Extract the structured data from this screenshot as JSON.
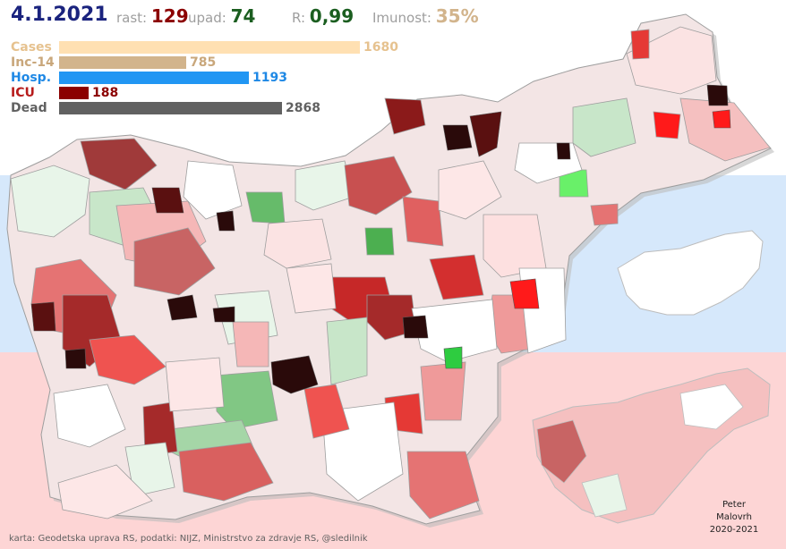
{
  "header": {
    "date": "4.1.2021",
    "rast_label": "rast:",
    "rast_value": "129",
    "upad_label": "upad:",
    "upad_value": "74",
    "r_label": "R:",
    "r_value": "0,99",
    "imunost_label": "Imunost:",
    "imunost_value": "35%"
  },
  "legend": [
    {
      "label": "Cases",
      "value": "1680",
      "color": "#ffe0b2",
      "label_color": "#e6c28f",
      "value_color": "#e6c28f",
      "fraction": 1.0
    },
    {
      "label": "Inc-14",
      "value": "785",
      "color": "#d2b48c",
      "label_color": "#c9a77b",
      "value_color": "#c9a77b",
      "fraction": 0.4226
    },
    {
      "label": "Hosp.",
      "value": "1193",
      "color": "#2196f3",
      "label_color": "#1e88e5",
      "value_color": "#1e88e5",
      "fraction": 0.6305
    },
    {
      "label": "ICU",
      "value": "188",
      "color": "#8b0000",
      "label_color": "#b71c1c",
      "value_color": "#8b0000",
      "fraction": 0.0988
    },
    {
      "label": "Dead",
      "value": "2868",
      "color": "#616161",
      "label_color": "#616161",
      "value_color": "#616161",
      "fraction": 0.7418
    }
  ],
  "colors": {
    "flag_white": "#ffffff",
    "flag_blue": "#d6e8fb",
    "flag_red": "#fdd5d5",
    "dark_red": "#8b0000",
    "green": "#4caf50"
  },
  "credit": "karta: Geodetska uprava RS,  podatki: NIJZ, Ministrstvo za zdravje RS, @sledilnik",
  "author": [
    "Peter",
    "Malovrh",
    "2020-2021"
  ]
}
